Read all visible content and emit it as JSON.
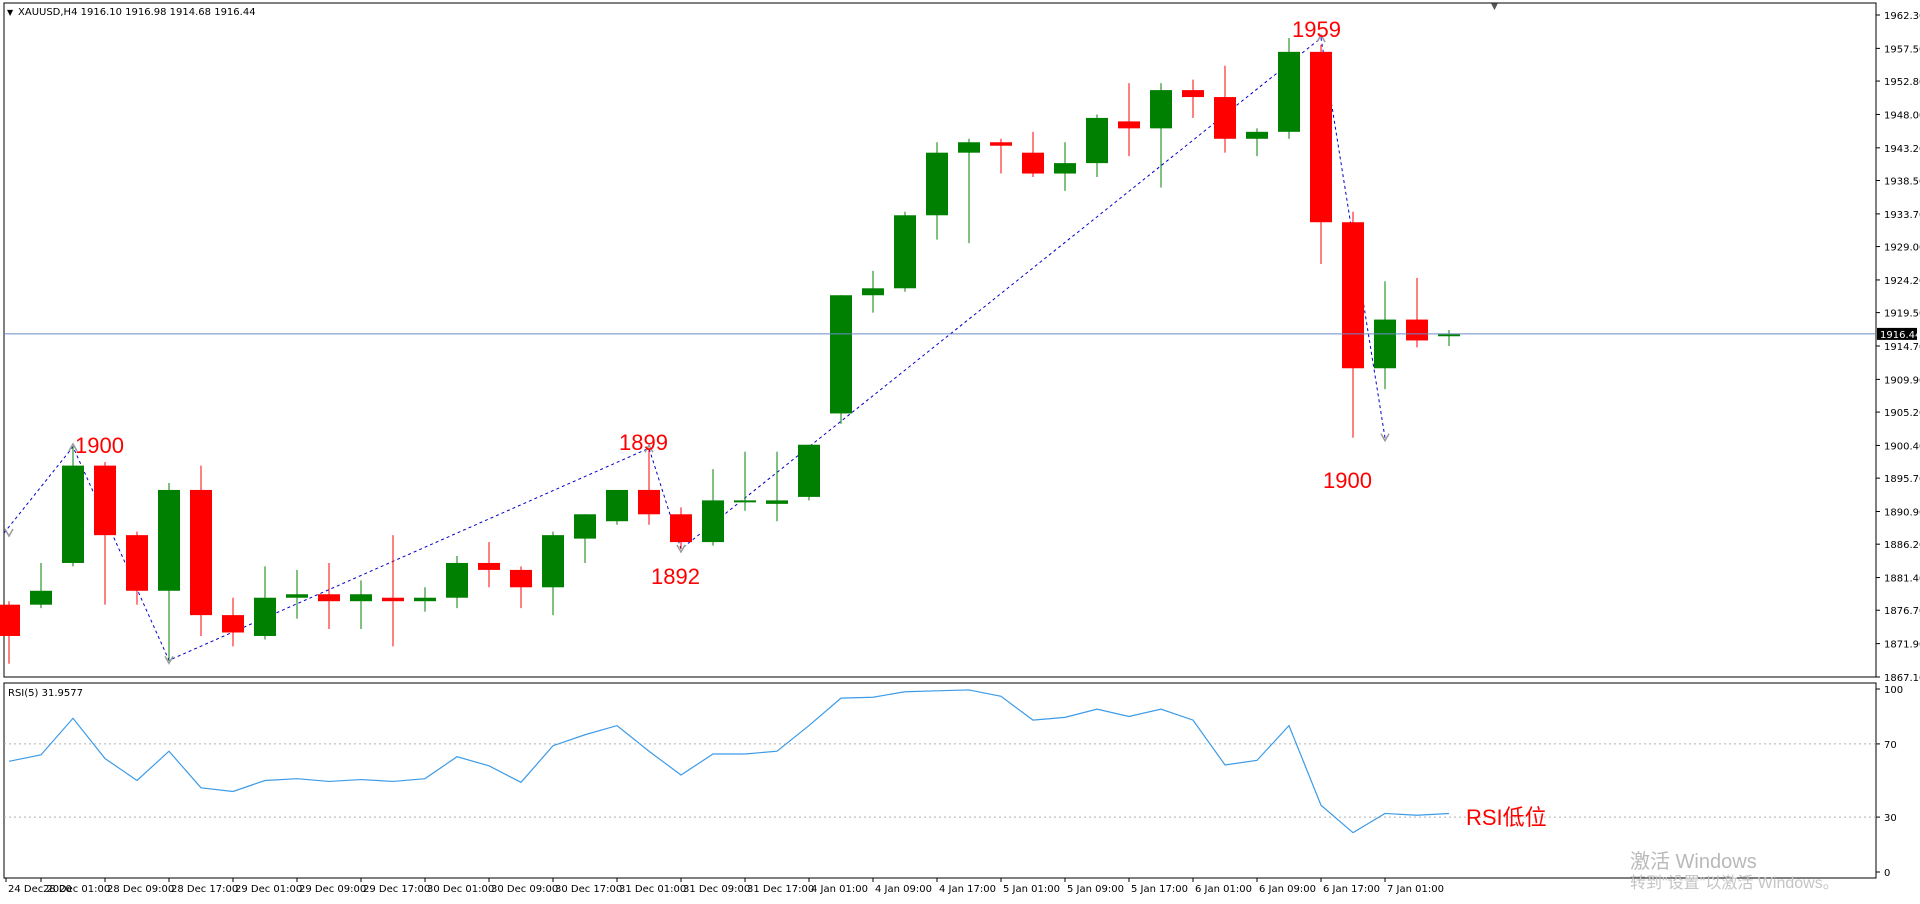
{
  "header": {
    "symbol_line": "XAUUSD,H4  1916.10 1916.98 1914.68 1916.44",
    "rsi_label": "RSI(5) 31.9577"
  },
  "colors": {
    "bull": "#008000",
    "bear": "#ff0000",
    "zigzag": "#0000cd",
    "price_line": "#6a8cc8",
    "rsi_line": "#3c9be8",
    "grid_level": "#b0b0b0",
    "annotation": "#ff0000",
    "axis_text": "#000000"
  },
  "annotations": {
    "peak_1900": "1900",
    "peak_1899": "1899",
    "trough_1892": "1892",
    "peak_1959": "1959",
    "trough_1900": "1900",
    "rsi_note": "RSI低位"
  },
  "watermark": {
    "line1": "激活 Windows",
    "line2": "转到\"设置\"以激活 Windows。"
  },
  "chart_data": [
    {
      "type": "candlestick",
      "symbol": "XAUUSD",
      "timeframe": "H4",
      "current_price": "1916.44",
      "ylim": [
        1867.1,
        1962.3
      ],
      "y_ticks": [
        "1962.30",
        "1957.50",
        "1952.80",
        "1948.00",
        "1943.20",
        "1938.50",
        "1933.70",
        "1929.00",
        "1924.20",
        "1919.50",
        "1914.70",
        "1909.90",
        "1905.20",
        "1900.40",
        "1895.70",
        "1890.90",
        "1886.20",
        "1881.40",
        "1876.70",
        "1871.90",
        "1867.10"
      ],
      "x_tick_labels": [
        "24 Dec 2020",
        "28 Dec 01:00",
        "28 Dec 09:00",
        "28 Dec 17:00",
        "29 Dec 01:00",
        "29 Dec 09:00",
        "29 Dec 17:00",
        "30 Dec 01:00",
        "30 Dec 09:00",
        "30 Dec 17:00",
        "31 Dec 01:00",
        "31 Dec 09:00",
        "31 Dec 17:00",
        "4 Jan 01:00",
        "4 Jan 09:00",
        "4 Jan 17:00",
        "5 Jan 01:00",
        "5 Jan 09:00",
        "5 Jan 17:00",
        "6 Jan 01:00",
        "6 Jan 09:00",
        "6 Jan 17:00",
        "7 Jan 01:00"
      ],
      "candles": [
        {
          "o": 1877.5,
          "h": 1878.0,
          "l": 1869.0,
          "c": 1873.0
        },
        {
          "o": 1877.5,
          "h": 1883.5,
          "l": 1877.0,
          "c": 1879.5
        },
        {
          "o": 1883.5,
          "h": 1900.2,
          "l": 1883.0,
          "c": 1897.5
        },
        {
          "o": 1897.5,
          "h": 1898.0,
          "l": 1877.5,
          "c": 1887.5
        },
        {
          "o": 1887.5,
          "h": 1888.0,
          "l": 1877.5,
          "c": 1879.5
        },
        {
          "o": 1879.5,
          "h": 1895.0,
          "l": 1869.5,
          "c": 1894.0
        },
        {
          "o": 1894.0,
          "h": 1897.5,
          "l": 1873.0,
          "c": 1876.0
        },
        {
          "o": 1876.0,
          "h": 1878.5,
          "l": 1871.5,
          "c": 1873.5
        },
        {
          "o": 1873.0,
          "h": 1883.0,
          "l": 1872.5,
          "c": 1878.5
        },
        {
          "o": 1878.5,
          "h": 1882.5,
          "l": 1875.5,
          "c": 1879.0
        },
        {
          "o": 1879.0,
          "h": 1883.5,
          "l": 1874.0,
          "c": 1878.0
        },
        {
          "o": 1878.0,
          "h": 1881.0,
          "l": 1874.0,
          "c": 1879.0
        },
        {
          "o": 1878.5,
          "h": 1887.5,
          "l": 1871.5,
          "c": 1878.0
        },
        {
          "o": 1878.0,
          "h": 1880.0,
          "l": 1876.5,
          "c": 1878.5
        },
        {
          "o": 1878.5,
          "h": 1884.5,
          "l": 1877.0,
          "c": 1883.5
        },
        {
          "o": 1883.5,
          "h": 1886.5,
          "l": 1880.0,
          "c": 1882.5
        },
        {
          "o": 1882.5,
          "h": 1883.0,
          "l": 1877.0,
          "c": 1880.0
        },
        {
          "o": 1880.0,
          "h": 1888.0,
          "l": 1876.0,
          "c": 1887.5
        },
        {
          "o": 1887.0,
          "h": 1890.5,
          "l": 1883.5,
          "c": 1890.5
        },
        {
          "o": 1889.5,
          "h": 1894.0,
          "l": 1889.0,
          "c": 1894.0
        },
        {
          "o": 1894.0,
          "h": 1900.0,
          "l": 1889.0,
          "c": 1890.5
        },
        {
          "o": 1890.5,
          "h": 1891.5,
          "l": 1885.5,
          "c": 1886.5
        },
        {
          "o": 1886.5,
          "h": 1897.0,
          "l": 1886.0,
          "c": 1892.5
        },
        {
          "o": 1892.5,
          "h": 1899.5,
          "l": 1891.0,
          "c": 1892.5
        },
        {
          "o": 1892.0,
          "h": 1899.5,
          "l": 1889.5,
          "c": 1892.5
        },
        {
          "o": 1893.0,
          "h": 1900.5,
          "l": 1892.5,
          "c": 1900.5
        },
        {
          "o": 1905.0,
          "h": 1922.0,
          "l": 1903.5,
          "c": 1922.0
        },
        {
          "o": 1922.0,
          "h": 1925.5,
          "l": 1919.5,
          "c": 1923.0
        },
        {
          "o": 1923.0,
          "h": 1934.0,
          "l": 1922.5,
          "c": 1933.5
        },
        {
          "o": 1933.5,
          "h": 1944.0,
          "l": 1930.0,
          "c": 1942.5
        },
        {
          "o": 1942.5,
          "h": 1944.5,
          "l": 1929.5,
          "c": 1944.0
        },
        {
          "o": 1944.0,
          "h": 1944.5,
          "l": 1939.5,
          "c": 1943.5
        },
        {
          "o": 1942.5,
          "h": 1945.5,
          "l": 1939.0,
          "c": 1939.5
        },
        {
          "o": 1939.5,
          "h": 1944.0,
          "l": 1937.0,
          "c": 1941.0
        },
        {
          "o": 1941.0,
          "h": 1948.0,
          "l": 1939.0,
          "c": 1947.5
        },
        {
          "o": 1947.0,
          "h": 1952.5,
          "l": 1942.0,
          "c": 1946.0
        },
        {
          "o": 1946.0,
          "h": 1952.5,
          "l": 1937.5,
          "c": 1951.5
        },
        {
          "o": 1951.5,
          "h": 1953.0,
          "l": 1947.5,
          "c": 1950.5
        },
        {
          "o": 1950.5,
          "h": 1955.0,
          "l": 1942.5,
          "c": 1944.5
        },
        {
          "o": 1944.5,
          "h": 1946.0,
          "l": 1942.0,
          "c": 1945.5
        },
        {
          "o": 1945.5,
          "h": 1959.0,
          "l": 1944.5,
          "c": 1957.0
        },
        {
          "o": 1957.0,
          "h": 1958.0,
          "l": 1926.5,
          "c": 1932.5
        },
        {
          "o": 1932.5,
          "h": 1934.0,
          "l": 1901.5,
          "c": 1911.5
        },
        {
          "o": 1911.5,
          "h": 1924.0,
          "l": 1908.5,
          "c": 1918.5
        },
        {
          "o": 1918.5,
          "h": 1924.5,
          "l": 1914.5,
          "c": 1915.5
        },
        {
          "o": 1916.1,
          "h": 1917.0,
          "l": 1914.7,
          "c": 1916.4
        }
      ],
      "zigzag_points": [
        {
          "bar": 0,
          "price": 1887.8
        },
        {
          "bar": 2,
          "price": 1900.2
        },
        {
          "bar": 5,
          "price": 1869.5
        },
        {
          "bar": 20,
          "price": 1900.0
        },
        {
          "bar": 21,
          "price": 1885.5
        },
        {
          "bar": 41,
          "price": 1959.0
        },
        {
          "bar": 43,
          "price": 1901.5
        }
      ]
    },
    {
      "type": "line",
      "name": "RSI(5)",
      "current_value": "31.9577",
      "ylim": [
        0,
        100
      ],
      "y_ticks": [
        "100",
        "70",
        "30",
        "0"
      ],
      "levels": [
        70,
        30
      ],
      "values": [
        60.5,
        64.0,
        84.0,
        62.0,
        50.0,
        66.0,
        46.0,
        44.0,
        50.0,
        51.0,
        49.5,
        50.5,
        49.5,
        51.0,
        63.0,
        58.0,
        49.0,
        69.0,
        75.0,
        80.0,
        66.0,
        53.0,
        64.5,
        64.5,
        66.0,
        80.0,
        95.0,
        95.5,
        98.5,
        99.0,
        99.5,
        96.0,
        83.0,
        84.5,
        89.0,
        85.0,
        89.0,
        83.0,
        58.5,
        61.0,
        80.0,
        36.5,
        21.5,
        32.0,
        31.0,
        31.95
      ]
    }
  ]
}
